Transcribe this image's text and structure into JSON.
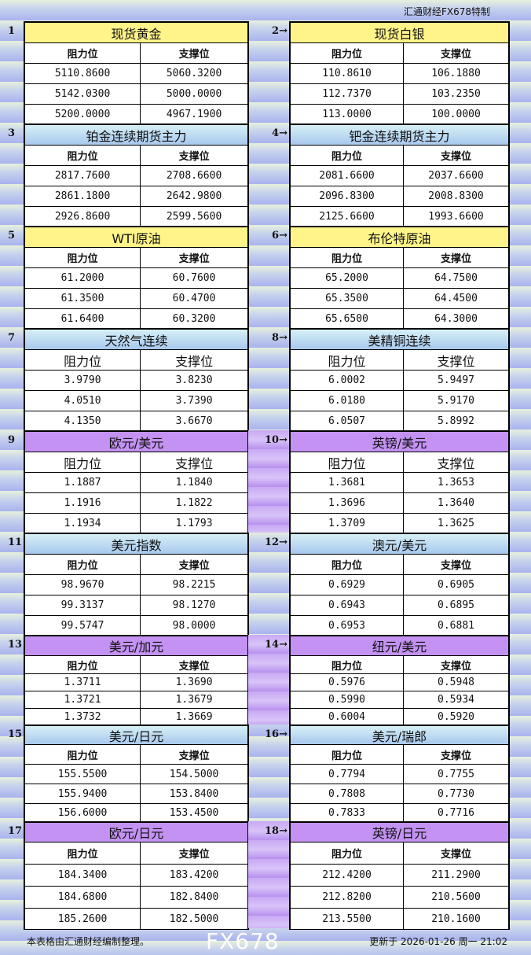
{
  "brand": "汇通财经FX678特制",
  "col_resist": "阻力位",
  "col_support": "支撑位",
  "colors": {
    "yellow": "#fff48a",
    "blue": "#a8c8ee",
    "purple": "#c392f2"
  },
  "sections": [
    {
      "num": "1",
      "title": "现货黄金",
      "color": "yellow",
      "rows": [
        [
          "5110.8600",
          "5060.3200"
        ],
        [
          "5142.0300",
          "5000.0000"
        ],
        [
          "5200.0000",
          "4967.1900"
        ]
      ]
    },
    {
      "num": "2→",
      "title": "现货白银",
      "color": "yellow",
      "rows": [
        [
          "110.8610",
          "106.1880"
        ],
        [
          "112.7370",
          "103.2350"
        ],
        [
          "113.0000",
          "100.0000"
        ]
      ]
    },
    {
      "num": "3",
      "title": "铂金连续期货主力",
      "color": "blue",
      "rows": [
        [
          "2817.7600",
          "2708.6600"
        ],
        [
          "2861.1800",
          "2642.9800"
        ],
        [
          "2926.8600",
          "2599.5600"
        ]
      ]
    },
    {
      "num": "4→",
      "title": "钯金连续期货主力",
      "color": "blue",
      "rows": [
        [
          "2081.6600",
          "2037.6600"
        ],
        [
          "2096.8300",
          "2008.8300"
        ],
        [
          "2125.6600",
          "1993.6600"
        ]
      ]
    },
    {
      "num": "5",
      "title": "WTI原油",
      "color": "yellow",
      "rows": [
        [
          "61.2000",
          "60.7600"
        ],
        [
          "61.3500",
          "60.4700"
        ],
        [
          "61.6400",
          "60.3200"
        ]
      ]
    },
    {
      "num": "6→",
      "title": "布伦特原油",
      "color": "yellow",
      "rows": [
        [
          "65.2000",
          "64.7500"
        ],
        [
          "65.3500",
          "64.4500"
        ],
        [
          "65.6500",
          "64.3000"
        ]
      ]
    },
    {
      "num": "7",
      "title": "天然气连续",
      "color": "blue",
      "rows": [
        [
          "3.9790",
          "3.8230"
        ],
        [
          "4.0510",
          "3.7390"
        ],
        [
          "4.1350",
          "3.6670"
        ]
      ]
    },
    {
      "num": "8→",
      "title": "美精铜连续",
      "color": "blue",
      "rows": [
        [
          "6.0002",
          "5.9497"
        ],
        [
          "6.0180",
          "5.9170"
        ],
        [
          "6.0507",
          "5.8992"
        ]
      ]
    },
    {
      "num": "9",
      "title": "欧元/美元",
      "color": "purple",
      "rows": [
        [
          "1.1887",
          "1.1840"
        ],
        [
          "1.1916",
          "1.1822"
        ],
        [
          "1.1934",
          "1.1793"
        ]
      ]
    },
    {
      "num": "10→",
      "title": "英镑/美元",
      "color": "purple",
      "rows": [
        [
          "1.3681",
          "1.3653"
        ],
        [
          "1.3696",
          "1.3640"
        ],
        [
          "1.3709",
          "1.3625"
        ]
      ]
    },
    {
      "num": "11",
      "title": "美元指数",
      "color": "blue",
      "rows": [
        [
          "98.9670",
          "98.2215"
        ],
        [
          "99.3137",
          "98.1270"
        ],
        [
          "99.5747",
          "98.0000"
        ]
      ]
    },
    {
      "num": "12→",
      "title": "澳元/美元",
      "color": "blue",
      "rows": [
        [
          "0.6929",
          "0.6905"
        ],
        [
          "0.6943",
          "0.6895"
        ],
        [
          "0.6953",
          "0.6881"
        ]
      ]
    },
    {
      "num": "13",
      "title": "美元/加元",
      "color": "purple",
      "rows": [
        [
          "1.3711",
          "1.3690"
        ],
        [
          "1.3721",
          "1.3679"
        ],
        [
          "1.3732",
          "1.3669"
        ]
      ]
    },
    {
      "num": "14→",
      "title": "纽元/美元",
      "color": "purple",
      "rows": [
        [
          "0.5976",
          "0.5948"
        ],
        [
          "0.5990",
          "0.5934"
        ],
        [
          "0.6004",
          "0.5920"
        ]
      ]
    },
    {
      "num": "15",
      "title": "美元/日元",
      "color": "blue",
      "rows": [
        [
          "155.5500",
          "154.5000"
        ],
        [
          "155.9400",
          "153.8400"
        ],
        [
          "156.6000",
          "153.4500"
        ]
      ]
    },
    {
      "num": "16→",
      "title": "美元/瑞郎",
      "color": "blue",
      "rows": [
        [
          "0.7794",
          "0.7755"
        ],
        [
          "0.7808",
          "0.7730"
        ],
        [
          "0.7833",
          "0.7716"
        ]
      ]
    },
    {
      "num": "17",
      "title": "欧元/日元",
      "color": "purple",
      "rows": [
        [
          "184.3400",
          "183.4200"
        ],
        [
          "184.6800",
          "182.8400"
        ],
        [
          "185.2600",
          "182.5000"
        ]
      ]
    },
    {
      "num": "18→",
      "title": "英镑/日元",
      "color": "purple",
      "rows": [
        [
          "212.4200",
          "211.2900"
        ],
        [
          "212.8200",
          "210.5600"
        ],
        [
          "213.5500",
          "210.1600"
        ]
      ]
    }
  ],
  "footer": {
    "note": "本表格由汇通财经编制整理。",
    "updated": "更新于 2026-01-26 周一 21:02"
  },
  "watermark": "FX678"
}
